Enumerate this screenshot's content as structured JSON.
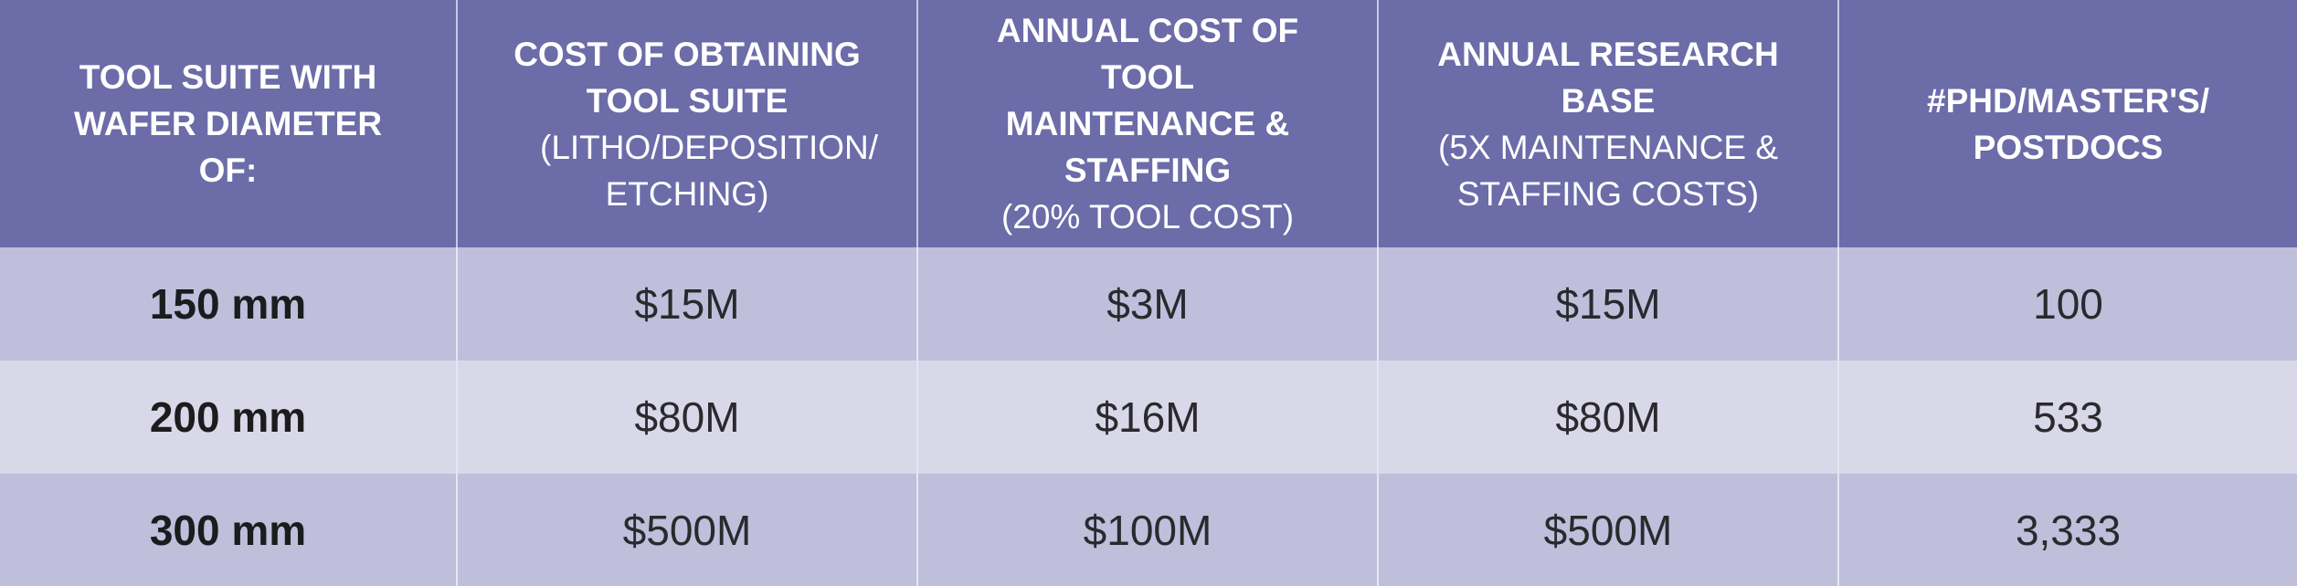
{
  "table": {
    "headers": [
      {
        "bold": "TOOL SUITE WITH WAFER DIAMETER OF:",
        "light": ""
      },
      {
        "bold": "COST OF OBTAINING TOOL SUITE",
        "light": "(LITHO/DEPOSITION/ ETCHING)"
      },
      {
        "bold": "ANNUAL COST OF TOOL MAINTENANCE & STAFFING",
        "light": "(20% TOOL COST)"
      },
      {
        "bold": "ANNUAL RESEARCH BASE",
        "light": "(5X MAINTENANCE & STAFFING COSTS)"
      },
      {
        "bold": "#PHD/MASTER'S/ POSTDOCS",
        "light": ""
      }
    ],
    "rows": [
      {
        "wafer": "150 mm",
        "obtain": "$15M",
        "maintenance": "$3M",
        "research": "$15M",
        "people": "100"
      },
      {
        "wafer": "200 mm",
        "obtain": "$80M",
        "maintenance": "$16M",
        "research": "$80M",
        "people": "533"
      },
      {
        "wafer": "300 mm",
        "obtain": "$500M",
        "maintenance": "$100M",
        "research": "$500M",
        "people": "3,333"
      }
    ],
    "colors": {
      "header_bg": "#6b6ca8",
      "row_odd_bg": "#bfbfdc",
      "row_even_bg": "#d8d8e8"
    }
  }
}
